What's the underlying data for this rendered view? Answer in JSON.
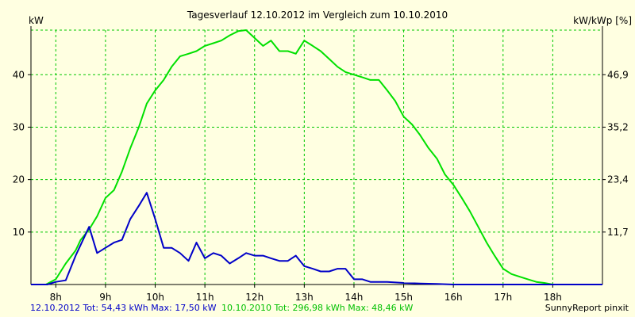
{
  "chart_data": {
    "type": "line",
    "title": "Tagesverlauf 12.10.2012 im Vergleich zum 10.10.2010",
    "ylabel_left": "kW",
    "ylabel_right": "kW/kWp [%]",
    "x_unit": "hour",
    "xlim": [
      7.5,
      19.0
    ],
    "ylim": [
      0,
      48.5
    ],
    "x_ticks": [
      {
        "v": 8,
        "label": "8h"
      },
      {
        "v": 9,
        "label": "9h"
      },
      {
        "v": 10,
        "label": "10h"
      },
      {
        "v": 11,
        "label": "11h"
      },
      {
        "v": 12,
        "label": "12h"
      },
      {
        "v": 13,
        "label": "13h"
      },
      {
        "v": 14,
        "label": "14h"
      },
      {
        "v": 15,
        "label": "15h"
      },
      {
        "v": 16,
        "label": "16h"
      },
      {
        "v": 17,
        "label": "17h"
      },
      {
        "v": 18,
        "label": "18h"
      }
    ],
    "y_ticks_left": [
      {
        "v": 10,
        "label": "10"
      },
      {
        "v": 20,
        "label": "20"
      },
      {
        "v": 30,
        "label": "30"
      },
      {
        "v": 40,
        "label": "40"
      }
    ],
    "y_ticks_right": [
      {
        "v": 10,
        "label": "11,7"
      },
      {
        "v": 20,
        "label": "23,4"
      },
      {
        "v": 30,
        "label": "35,2"
      },
      {
        "v": 40,
        "label": "46,9"
      }
    ],
    "grid": true,
    "colors": {
      "green": "#00e000",
      "blue": "#0000c8",
      "grid": "#00c800",
      "background": "#ffffe1",
      "axis": "#000000"
    },
    "series": [
      {
        "name": "10.10.2010",
        "color": "#00e000",
        "points": [
          [
            7.5,
            0.0
          ],
          [
            7.8,
            0.0
          ],
          [
            8.0,
            1.0
          ],
          [
            8.2,
            4.0
          ],
          [
            8.4,
            6.5
          ],
          [
            8.5,
            8.5
          ],
          [
            8.67,
            10.5
          ],
          [
            8.83,
            13.0
          ],
          [
            9.0,
            16.5
          ],
          [
            9.17,
            18.0
          ],
          [
            9.33,
            21.5
          ],
          [
            9.5,
            26.0
          ],
          [
            9.67,
            30.0
          ],
          [
            9.83,
            34.5
          ],
          [
            10.0,
            37.0
          ],
          [
            10.17,
            39.0
          ],
          [
            10.33,
            41.5
          ],
          [
            10.5,
            43.5
          ],
          [
            10.67,
            44.0
          ],
          [
            10.83,
            44.5
          ],
          [
            11.0,
            45.5
          ],
          [
            11.17,
            46.0
          ],
          [
            11.33,
            46.5
          ],
          [
            11.5,
            47.5
          ],
          [
            11.67,
            48.3
          ],
          [
            11.83,
            48.5
          ],
          [
            12.0,
            47.0
          ],
          [
            12.17,
            45.5
          ],
          [
            12.33,
            46.5
          ],
          [
            12.5,
            44.5
          ],
          [
            12.67,
            44.5
          ],
          [
            12.83,
            44.0
          ],
          [
            13.0,
            46.5
          ],
          [
            13.17,
            45.5
          ],
          [
            13.33,
            44.5
          ],
          [
            13.5,
            43.0
          ],
          [
            13.67,
            41.5
          ],
          [
            13.83,
            40.5
          ],
          [
            14.0,
            40.0
          ],
          [
            14.17,
            39.5
          ],
          [
            14.33,
            39.0
          ],
          [
            14.5,
            39.0
          ],
          [
            14.67,
            37.0
          ],
          [
            14.83,
            35.0
          ],
          [
            15.0,
            32.0
          ],
          [
            15.17,
            30.5
          ],
          [
            15.33,
            28.5
          ],
          [
            15.5,
            26.0
          ],
          [
            15.67,
            24.0
          ],
          [
            15.83,
            21.0
          ],
          [
            16.0,
            19.0
          ],
          [
            16.17,
            16.5
          ],
          [
            16.33,
            14.0
          ],
          [
            16.5,
            11.0
          ],
          [
            16.67,
            8.0
          ],
          [
            16.83,
            5.5
          ],
          [
            17.0,
            3.0
          ],
          [
            17.17,
            2.0
          ],
          [
            17.33,
            1.5
          ],
          [
            17.5,
            1.0
          ],
          [
            17.67,
            0.5
          ],
          [
            17.83,
            0.3
          ],
          [
            18.0,
            0.0
          ],
          [
            19.0,
            0.0
          ]
        ]
      },
      {
        "name": "12.10.2012",
        "color": "#0000c8",
        "points": [
          [
            7.5,
            0.0
          ],
          [
            7.83,
            0.0
          ],
          [
            8.0,
            0.5
          ],
          [
            8.2,
            0.8
          ],
          [
            8.4,
            5.5
          ],
          [
            8.67,
            11.0
          ],
          [
            8.83,
            6.0
          ],
          [
            9.0,
            7.0
          ],
          [
            9.17,
            8.0
          ],
          [
            9.33,
            8.5
          ],
          [
            9.5,
            12.5
          ],
          [
            9.67,
            15.0
          ],
          [
            9.83,
            17.5
          ],
          [
            10.0,
            12.5
          ],
          [
            10.17,
            7.0
          ],
          [
            10.33,
            7.0
          ],
          [
            10.5,
            6.0
          ],
          [
            10.67,
            4.5
          ],
          [
            10.83,
            8.0
          ],
          [
            11.0,
            5.0
          ],
          [
            11.17,
            6.0
          ],
          [
            11.33,
            5.5
          ],
          [
            11.5,
            4.0
          ],
          [
            11.67,
            5.0
          ],
          [
            11.83,
            6.0
          ],
          [
            12.0,
            5.5
          ],
          [
            12.17,
            5.5
          ],
          [
            12.33,
            5.0
          ],
          [
            12.5,
            4.5
          ],
          [
            12.67,
            4.5
          ],
          [
            12.83,
            5.5
          ],
          [
            13.0,
            3.5
          ],
          [
            13.17,
            3.0
          ],
          [
            13.33,
            2.5
          ],
          [
            13.5,
            2.5
          ],
          [
            13.67,
            3.0
          ],
          [
            13.83,
            3.0
          ],
          [
            14.0,
            1.0
          ],
          [
            14.17,
            1.0
          ],
          [
            14.33,
            0.5
          ],
          [
            14.67,
            0.5
          ],
          [
            15.0,
            0.3
          ],
          [
            15.33,
            0.2
          ],
          [
            15.67,
            0.1
          ],
          [
            16.0,
            0.0
          ],
          [
            19.0,
            0.0
          ]
        ]
      }
    ]
  },
  "footer": {
    "left_2012": "12.10.2012 Tot: 54,43 kWh Max: 17,50 kW",
    "left_2010": "10.10.2010 Tot: 296,98 kWh Max: 48,46 kW",
    "right": "SunnyReport pinxit"
  }
}
